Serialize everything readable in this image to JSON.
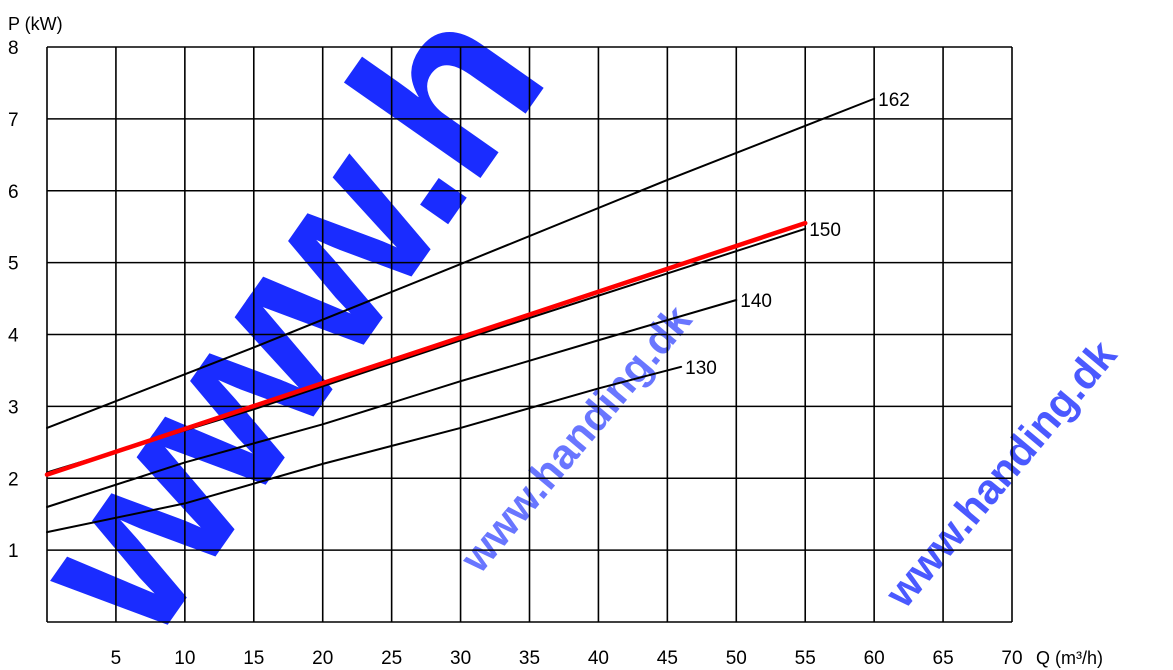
{
  "chart_data": {
    "type": "line",
    "xlabel": "Q (m³/h)",
    "ylabel": "P (kW)",
    "xlim": [
      0,
      70
    ],
    "ylim": [
      0,
      8
    ],
    "x_ticks": [
      5,
      10,
      15,
      20,
      25,
      30,
      35,
      40,
      45,
      50,
      55,
      60,
      65,
      70
    ],
    "y_ticks": [
      1,
      2,
      3,
      4,
      5,
      6,
      7,
      8
    ],
    "grid": true,
    "series": [
      {
        "name": "162",
        "color": "#000000",
        "highlight": false,
        "x": [
          0,
          15,
          30,
          45,
          60
        ],
        "y": [
          2.7,
          3.82,
          4.98,
          6.15,
          7.28
        ]
      },
      {
        "name": "150",
        "color": "#000000",
        "highlight": false,
        "x": [
          0,
          15,
          30,
          45,
          55
        ],
        "y": [
          2.08,
          2.96,
          3.92,
          4.85,
          5.47
        ]
      },
      {
        "name": "140",
        "color": "#000000",
        "highlight": false,
        "x": [
          0,
          10,
          20,
          30,
          40,
          50
        ],
        "y": [
          1.6,
          2.22,
          2.75,
          3.35,
          3.92,
          4.48
        ]
      },
      {
        "name": "130",
        "color": "#000000",
        "highlight": false,
        "x": [
          0,
          10,
          20,
          30,
          40,
          46
        ],
        "y": [
          1.25,
          1.65,
          2.2,
          2.7,
          3.25,
          3.55
        ]
      },
      {
        "name": "150",
        "color": "#ff0000",
        "highlight": true,
        "x": [
          0,
          55
        ],
        "y": [
          2.05,
          5.55
        ]
      }
    ]
  },
  "watermark": {
    "large": "www.h",
    "small": "www.handing.dk",
    "large_color": "#1a2cff",
    "small_color": "#2a3cff"
  }
}
